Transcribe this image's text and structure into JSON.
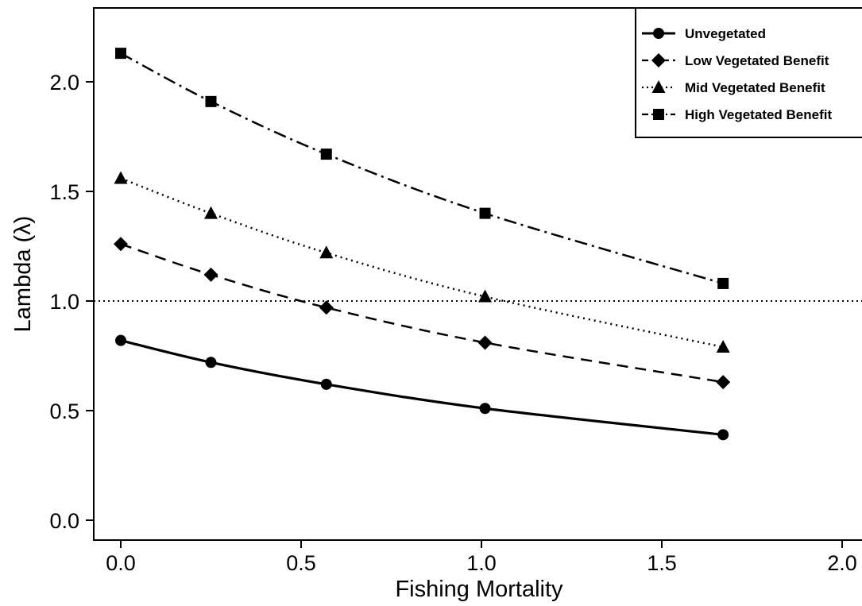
{
  "chart_data": {
    "type": "line",
    "xlabel": "Fishing Mortality",
    "ylabel": "Lambda (λ)",
    "xlim": [
      -0.05,
      2.05
    ],
    "ylim": [
      -0.07,
      2.35
    ],
    "x_ticks": [
      0.0,
      0.5,
      1.0,
      1.5,
      2.0
    ],
    "x_tick_labels": [
      "0.0",
      "0.5",
      "1.0",
      "1.5",
      "2.0"
    ],
    "y_ticks": [
      0.0,
      0.5,
      1.0,
      1.5,
      2.0
    ],
    "y_tick_labels": [
      "0.0",
      "0.5",
      "1.0",
      "1.5",
      "2.0"
    ],
    "reference_line": {
      "y": 1.0,
      "style": "dotted"
    },
    "grid": false,
    "legend_position": "top-right",
    "x": [
      0.0,
      0.25,
      0.57,
      1.01,
      1.67
    ],
    "series": [
      {
        "name": "Unvegetated",
        "values": [
          0.82,
          0.72,
          0.62,
          0.51,
          0.39
        ],
        "marker": "circle",
        "line_style": "solid"
      },
      {
        "name": "Low Vegetated Benefit",
        "values": [
          1.26,
          1.12,
          0.97,
          0.81,
          0.63
        ],
        "marker": "diamond",
        "line_style": "dashed"
      },
      {
        "name": "Mid Vegetated Benefit",
        "values": [
          1.56,
          1.4,
          1.22,
          1.02,
          0.79
        ],
        "marker": "triangle",
        "line_style": "dotted"
      },
      {
        "name": "High Vegetated Benefit",
        "values": [
          2.13,
          1.91,
          1.67,
          1.4,
          1.08
        ],
        "marker": "square",
        "line_style": "dashdot"
      }
    ]
  }
}
